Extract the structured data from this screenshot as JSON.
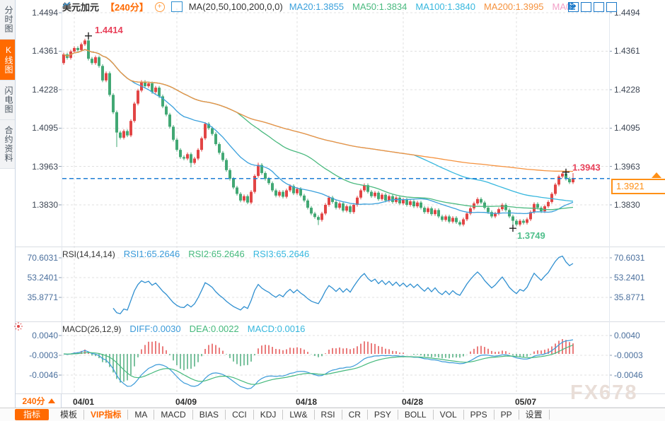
{
  "header": {
    "symbol": "美元加元",
    "period": "【240分】",
    "ma_settings": "MA(20,50,100,200,0,0)",
    "ma_values": [
      {
        "label": "MA20:1.3855",
        "color_key": "ma20"
      },
      {
        "label": "MA50:1.3834",
        "color_key": "ma50"
      },
      {
        "label": "MA100:1.3840",
        "color_key": "ma100"
      },
      {
        "label": "MA200:1.3995",
        "color_key": "ma200"
      },
      {
        "label": "MA0",
        "color_key": "ma0_label"
      }
    ]
  },
  "sidebar": {
    "tabs": [
      {
        "label": "分时图",
        "active": false
      },
      {
        "label": "K线图",
        "active": true
      },
      {
        "label": "闪电图",
        "active": false
      },
      {
        "label": "合约资料",
        "active": false
      }
    ]
  },
  "rsi_panel": {
    "title": "RSI(14,14,14)",
    "values": [
      {
        "label": "RSI1:65.2646",
        "color_key": "diff"
      },
      {
        "label": "RSI2:65.2646",
        "color_key": "dea"
      },
      {
        "label": "RSI3:65.2646",
        "color_key": "ma100"
      }
    ]
  },
  "macd_panel": {
    "title": "MACD(26,12,9)",
    "values": [
      {
        "label": "DIFF:0.0030",
        "color_key": "diff"
      },
      {
        "label": "DEA:0.0022",
        "color_key": "dea"
      },
      {
        "label": "MACD:0.0016",
        "color_key": "ma100"
      }
    ]
  },
  "annotations": {
    "high": {
      "label": "1.4414",
      "index": 7,
      "price": 1.4414
    },
    "low": {
      "label": "1.3749",
      "index": 127,
      "price": 1.3749
    },
    "recent_high": {
      "label": "1.3943",
      "index": 142,
      "price": 1.3943
    },
    "last_price_label": "1.3921"
  },
  "period_selector": {
    "label": "240分"
  },
  "bottom_toolbar": {
    "items": [
      {
        "label": "指标",
        "variant": "active"
      },
      {
        "label": "模板",
        "variant": ""
      },
      {
        "label": "VIP指标",
        "variant": "vip"
      },
      {
        "label": "MA",
        "variant": ""
      },
      {
        "label": "MACD",
        "variant": ""
      },
      {
        "label": "BIAS",
        "variant": ""
      },
      {
        "label": "CCI",
        "variant": ""
      },
      {
        "label": "KDJ",
        "variant": ""
      },
      {
        "label": "LW&",
        "variant": ""
      },
      {
        "label": "RSI",
        "variant": ""
      },
      {
        "label": "CR",
        "variant": ""
      },
      {
        "label": "PSY",
        "variant": ""
      },
      {
        "label": "BOLL",
        "variant": ""
      },
      {
        "label": "VOL",
        "variant": ""
      },
      {
        "label": "PPS",
        "variant": ""
      },
      {
        "label": "PP",
        "variant": ""
      },
      {
        "label": "设置",
        "variant": ""
      }
    ]
  },
  "watermark": "FX678",
  "colors": {
    "up": "#e24545",
    "down": "#42a874",
    "ma20": "#3aa0dc",
    "ma50": "#49b97e",
    "ma100": "#36b7de",
    "ma200": "#f5923e",
    "ma0_label": "#f2a0c8",
    "rsi": "#2f8fd0",
    "diff": "#3a9ad9",
    "dea": "#45b97c",
    "hist_pos": "#e24545",
    "hist_neg": "#42a874",
    "price_line": "#1f7fd4",
    "accent": "#ff6a00",
    "tag": "#ff9016",
    "ann_high": "#e8415a",
    "ann_low": "#4fbf8b",
    "grid": "#e0e0e0",
    "tick": "#8fa0b4"
  },
  "chart_data": {
    "type": "candlestick",
    "symbol": "美元加元 (USD/CAD)",
    "interval": "240分",
    "first_open": 1.432,
    "default_wick": 0.0006,
    "closes": [
      1.435,
      1.4338,
      1.436,
      1.4372,
      1.4365,
      1.4385,
      1.4398,
      1.4335,
      1.432,
      1.434,
      1.431,
      1.426,
      1.4285,
      1.421,
      1.415,
      1.408,
      1.4062,
      1.4085,
      1.407,
      1.412,
      1.418,
      1.4225,
      1.4255,
      1.424,
      1.425,
      1.422,
      1.4235,
      1.4205,
      1.417,
      1.4142,
      1.41,
      1.4055,
      1.402,
      1.3995,
      1.399,
      1.4005,
      1.3975,
      1.399,
      1.402,
      1.406,
      1.411,
      1.4095,
      1.4075,
      1.404,
      1.401,
      1.3985,
      1.395,
      1.392,
      1.389,
      1.3868,
      1.3845,
      1.386,
      1.3838,
      1.3875,
      1.393,
      1.3968,
      1.394,
      1.392,
      1.3905,
      1.388,
      1.3862,
      1.3875,
      1.3858,
      1.388,
      1.3895,
      1.387,
      1.3885,
      1.3862,
      1.3845,
      1.382,
      1.38,
      1.3788,
      1.3778,
      1.38,
      1.383,
      1.3855,
      1.384,
      1.382,
      1.3835,
      1.381,
      1.3825,
      1.3805,
      1.383,
      1.3855,
      1.388,
      1.3898,
      1.3875,
      1.386,
      1.3872,
      1.385,
      1.3865,
      1.3845,
      1.386,
      1.384,
      1.3855,
      1.3835,
      1.3848,
      1.383,
      1.3842,
      1.3825,
      1.3838,
      1.382,
      1.3805,
      1.3818,
      1.3798,
      1.3812,
      1.379,
      1.3778,
      1.379,
      1.3772,
      1.3785,
      1.377,
      1.3762,
      1.378,
      1.38,
      1.3818,
      1.3835,
      1.385,
      1.3838,
      1.382,
      1.3805,
      1.379,
      1.38,
      1.3815,
      1.383,
      1.3812,
      1.379,
      1.3775,
      1.3762,
      1.3775,
      1.3768,
      1.378,
      1.3805,
      1.3833,
      1.382,
      1.3808,
      1.3825,
      1.384,
      1.3868,
      1.39,
      1.3928,
      1.3938,
      1.392,
      1.3908,
      1.3921
    ],
    "extremes": {
      "7": {
        "high": 1.4414
      },
      "15": {
        "low": 1.403
      },
      "36": {
        "low": 1.396
      },
      "55": {
        "high": 1.3976
      },
      "72": {
        "low": 1.376
      },
      "127": {
        "low": 1.3749
      },
      "142": {
        "high": 1.3943
      },
      "144": {
        "high": 1.394
      }
    },
    "last_price": 1.3921,
    "y_ticks": [
      1.4494,
      1.4361,
      1.4228,
      1.4095,
      1.3963,
      1.383
    ],
    "x_ticks": [
      {
        "label": "04/01",
        "index": 3
      },
      {
        "label": "04/09",
        "index": 32
      },
      {
        "label": "04/18",
        "index": 66
      },
      {
        "label": "04/28",
        "index": 96
      },
      {
        "label": "05/07",
        "index": 128
      }
    ],
    "overlays": {
      "ma_periods": [
        20,
        50,
        100,
        200
      ]
    },
    "rsi": {
      "period": 14,
      "ticks": [
        70.6031,
        53.2401,
        35.8771
      ]
    },
    "macd": {
      "params": [
        26,
        12,
        9
      ],
      "ticks": [
        0.004,
        -0.0003,
        -0.0046
      ]
    }
  }
}
